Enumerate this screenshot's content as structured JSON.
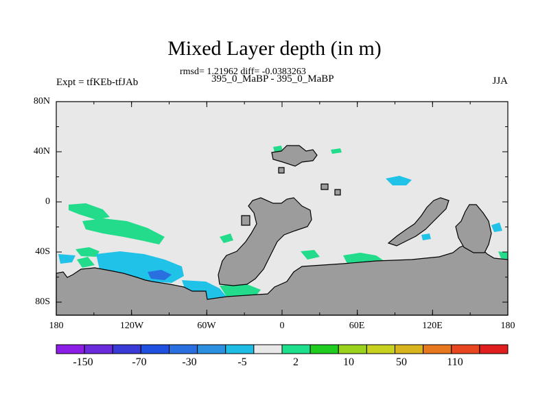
{
  "title": "Mixed Layer depth (in m)",
  "subtitle": "rmsd= 1.21962 diff= -0.0383263",
  "center_label": "395_0_MaBP - 395_0_MaBP",
  "left_label": "Expt = tfKEb-tfJAb",
  "right_label": "JJA",
  "x_ticks": [
    "180",
    "120W",
    "60W",
    "0",
    "60E",
    "120E",
    "180"
  ],
  "y_ticks": [
    "80N",
    "40N",
    "0",
    "40S",
    "80S"
  ],
  "colorbar": {
    "colors": [
      "#8c1ee6",
      "#6a2bdc",
      "#3a3ad6",
      "#2050e0",
      "#2a6fdf",
      "#2c90e0",
      "#1fbde6",
      "#e8e8e8",
      "#1ee08c",
      "#20cc20",
      "#9ad21e",
      "#c8d21e",
      "#d8b41e",
      "#e8781e",
      "#e8461e",
      "#e01e1e"
    ],
    "labels": [
      "-150",
      "-70",
      "-30",
      "-5",
      "2",
      "10",
      "50",
      "110"
    ]
  },
  "colors": {
    "land": "#9c9c9c",
    "ocean_zero": "#e8e8e8",
    "green": "#22dc8c",
    "cyan": "#20c2e8",
    "blue": "#2a6fdf",
    "light_green": "#5ae04a",
    "yellow": "#c8d21e"
  }
}
